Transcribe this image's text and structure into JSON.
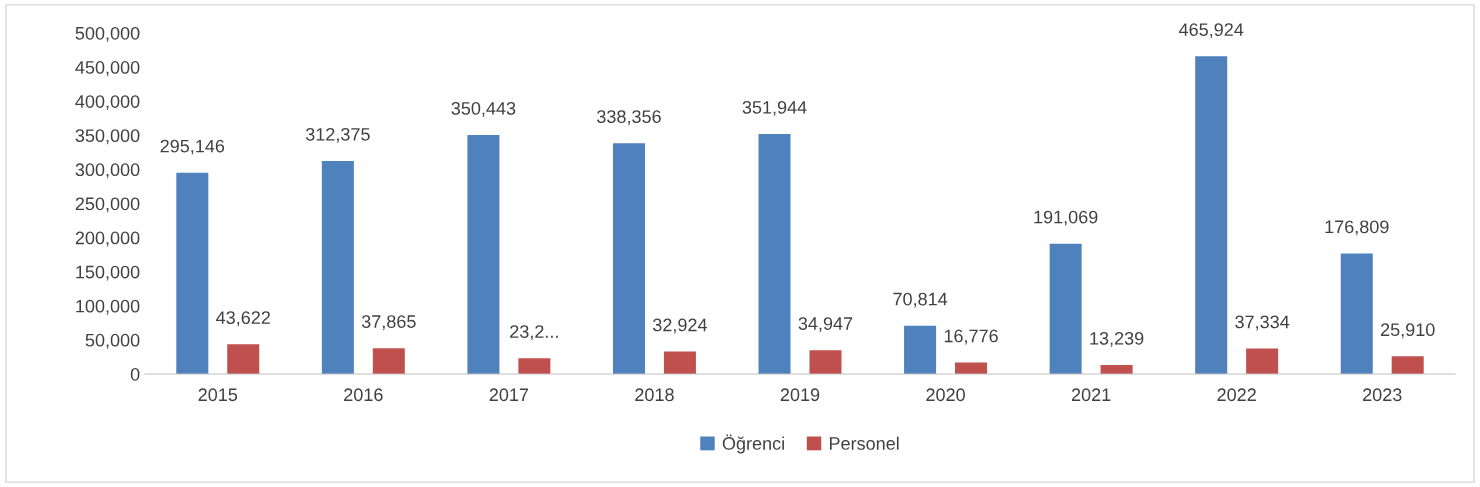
{
  "chart_data": {
    "type": "bar",
    "categories": [
      "2015",
      "2016",
      "2017",
      "2018",
      "2019",
      "2020",
      "2021",
      "2022",
      "2023"
    ],
    "series": [
      {
        "name": "Öğrenci",
        "color": "#4f81bd",
        "values": [
          295146,
          312375,
          350443,
          338356,
          351944,
          70814,
          191069,
          465924,
          176809
        ],
        "value_labels": [
          "295,146",
          "312,375",
          "350,443",
          "338,356",
          "351,944",
          "70,814",
          "191,069",
          "465,924",
          "176,809"
        ]
      },
      {
        "name": "Personel",
        "color": "#c0504d",
        "values": [
          43622,
          37865,
          23200,
          32924,
          34947,
          16776,
          13239,
          37334,
          25910
        ],
        "value_labels": [
          "43,622",
          "37,865",
          "23,2...",
          "32,924",
          "34,947",
          "16,776",
          "13,239",
          "37,334",
          "25,910"
        ]
      }
    ],
    "ylim": [
      0,
      500000
    ],
    "yticks": [
      {
        "value": 0,
        "label": "0"
      },
      {
        "value": 50000,
        "label": "50,000"
      },
      {
        "value": 100000,
        "label": "100,000"
      },
      {
        "value": 150000,
        "label": "150,000"
      },
      {
        "value": 200000,
        "label": "200,000"
      },
      {
        "value": 250000,
        "label": "250,000"
      },
      {
        "value": 300000,
        "label": "300,000"
      },
      {
        "value": 350000,
        "label": "350,000"
      },
      {
        "value": 400000,
        "label": "400,000"
      },
      {
        "value": 450000,
        "label": "450,000"
      },
      {
        "value": 500000,
        "label": "500,000"
      }
    ],
    "grid": false,
    "legend": "bottom"
  }
}
